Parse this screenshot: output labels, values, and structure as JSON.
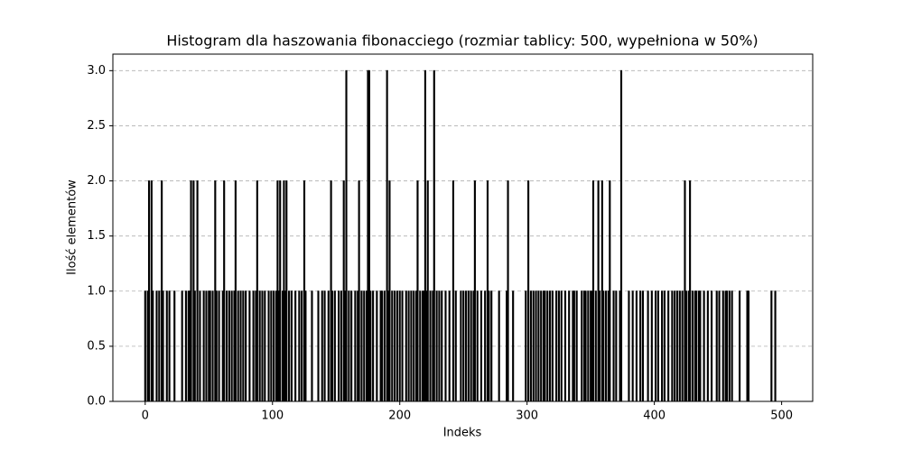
{
  "chart_data": {
    "type": "bar",
    "title": "Histogram dla haszowania fibonacciego (rozmiar tablicy: 500, wypełniona w 50%)",
    "x_label": "Indeks",
    "y_label": "Ilość elementów",
    "color": "#000000",
    "edgecolor": "#000000",
    "grid": true,
    "xlim": [
      -25.4,
      524.4
    ],
    "ylim": [
      0,
      3.15
    ],
    "xticks": [
      0,
      100,
      200,
      300,
      400,
      500
    ],
    "yticks": [
      {
        "value": 0,
        "label": "0.0"
      },
      {
        "value": 0.5,
        "label": "0.5"
      },
      {
        "value": 1,
        "label": "1.0"
      },
      {
        "value": 1.5,
        "label": "1.5"
      },
      {
        "value": 2,
        "label": "2.0"
      },
      {
        "value": 2.5,
        "label": "2.5"
      },
      {
        "value": 3,
        "label": "3.0"
      }
    ],
    "x": [
      0,
      1,
      2,
      3,
      4,
      5,
      6,
      7,
      8,
      9,
      10,
      11,
      12,
      13,
      14,
      15,
      16,
      17,
      18,
      19,
      20,
      21,
      22,
      23,
      24,
      25,
      26,
      27,
      28,
      29,
      30,
      31,
      32,
      33,
      34,
      35,
      36,
      37,
      38,
      39,
      40,
      41,
      42,
      43,
      44,
      45,
      46,
      47,
      48,
      49,
      50,
      51,
      52,
      53,
      54,
      55,
      56,
      57,
      58,
      59,
      60,
      61,
      62,
      63,
      64,
      65,
      66,
      67,
      68,
      69,
      70,
      71,
      72,
      73,
      74,
      75,
      76,
      77,
      78,
      79,
      80,
      81,
      82,
      83,
      84,
      85,
      86,
      87,
      88,
      89,
      90,
      91,
      92,
      93,
      94,
      95,
      96,
      97,
      98,
      99,
      100,
      101,
      102,
      103,
      104,
      105,
      106,
      107,
      108,
      109,
      110,
      111,
      112,
      113,
      114,
      115,
      116,
      117,
      118,
      119,
      120,
      121,
      122,
      123,
      124,
      125,
      126,
      127,
      128,
      129,
      130,
      131,
      132,
      133,
      134,
      135,
      136,
      137,
      138,
      139,
      140,
      141,
      142,
      143,
      144,
      145,
      146,
      147,
      148,
      149,
      150,
      151,
      152,
      153,
      154,
      155,
      156,
      157,
      158,
      159,
      160,
      161,
      162,
      163,
      164,
      165,
      166,
      167,
      168,
      169,
      170,
      171,
      172,
      173,
      174,
      175,
      176,
      177,
      178,
      179,
      180,
      181,
      182,
      183,
      184,
      185,
      186,
      187,
      188,
      189,
      190,
      191,
      192,
      193,
      194,
      195,
      196,
      197,
      198,
      199,
      200,
      201,
      202,
      203,
      204,
      205,
      206,
      207,
      208,
      209,
      210,
      211,
      212,
      213,
      214,
      215,
      216,
      217,
      218,
      219,
      220,
      221,
      222,
      223,
      224,
      225,
      226,
      227,
      228,
      229,
      230,
      231,
      232,
      233,
      234,
      235,
      236,
      237,
      238,
      239,
      240,
      241,
      242,
      243,
      244,
      245,
      246,
      247,
      248,
      249,
      250,
      251,
      252,
      253,
      254,
      255,
      256,
      257,
      258,
      259,
      260,
      261,
      262,
      263,
      264,
      265,
      266,
      267,
      268,
      269,
      270,
      271,
      272,
      273,
      274,
      275,
      276,
      277,
      278,
      279,
      280,
      281,
      282,
      283,
      284,
      285,
      286,
      287,
      288,
      289,
      290,
      291,
      292,
      293,
      294,
      295,
      296,
      297,
      298,
      299,
      300,
      301,
      302,
      303,
      304,
      305,
      306,
      307,
      308,
      309,
      310,
      311,
      312,
      313,
      314,
      315,
      316,
      317,
      318,
      319,
      320,
      321,
      322,
      323,
      324,
      325,
      326,
      327,
      328,
      329,
      330,
      331,
      332,
      333,
      334,
      335,
      336,
      337,
      338,
      339,
      340,
      341,
      342,
      343,
      344,
      345,
      346,
      347,
      348,
      349,
      350,
      351,
      352,
      353,
      354,
      355,
      356,
      357,
      358,
      359,
      360,
      361,
      362,
      363,
      364,
      365,
      366,
      367,
      368,
      369,
      370,
      371,
      372,
      373,
      374,
      375,
      376,
      377,
      378,
      379,
      380,
      381,
      382,
      383,
      384,
      385,
      386,
      387,
      388,
      389,
      390,
      391,
      392,
      393,
      394,
      395,
      396,
      397,
      398,
      399,
      400,
      401,
      402,
      403,
      404,
      405,
      406,
      407,
      408,
      409,
      410,
      411,
      412,
      413,
      414,
      415,
      416,
      417,
      418,
      419,
      420,
      421,
      422,
      423,
      424,
      425,
      426,
      427,
      428,
      429,
      430,
      431,
      432,
      433,
      434,
      435,
      436,
      437,
      438,
      439,
      440,
      441,
      442,
      443,
      444,
      445,
      446,
      447,
      448,
      449,
      450,
      451,
      452,
      453,
      454,
      455,
      456,
      457,
      458,
      459,
      460,
      461,
      462,
      463,
      464,
      465,
      466,
      467,
      468,
      469,
      470,
      471,
      472,
      473,
      474,
      475,
      476,
      477,
      478,
      479,
      480,
      481,
      482,
      483,
      484,
      485,
      486,
      487,
      488,
      489,
      490,
      491,
      492,
      493,
      494,
      495,
      496,
      497,
      498,
      499
    ],
    "values": [
      1,
      0,
      1,
      2,
      0,
      2,
      1,
      0,
      0,
      1,
      0,
      1,
      0,
      2,
      1,
      0,
      0,
      1,
      0,
      1,
      0,
      0,
      0,
      1,
      0,
      0,
      0,
      0,
      0,
      1,
      0,
      0,
      1,
      0,
      1,
      1,
      2,
      0,
      2,
      1,
      0,
      2,
      0,
      1,
      0,
      0,
      1,
      0,
      1,
      0,
      1,
      1,
      0,
      1,
      0,
      2,
      1,
      0,
      1,
      0,
      0,
      1,
      2,
      0,
      1,
      0,
      1,
      0,
      1,
      0,
      1,
      2,
      0,
      1,
      0,
      1,
      0,
      1,
      0,
      1,
      0,
      0,
      1,
      0,
      0,
      1,
      0,
      1,
      2,
      0,
      1,
      0,
      1,
      0,
      1,
      0,
      0,
      1,
      0,
      1,
      0,
      1,
      0,
      1,
      2,
      1,
      2,
      0,
      1,
      2,
      1,
      2,
      0,
      1,
      0,
      1,
      0,
      0,
      1,
      0,
      0,
      1,
      0,
      1,
      0,
      2,
      1,
      0,
      0,
      0,
      0,
      1,
      0,
      0,
      0,
      0,
      1,
      0,
      0,
      1,
      0,
      1,
      0,
      0,
      1,
      0,
      2,
      1,
      0,
      1,
      0,
      0,
      1,
      0,
      1,
      0,
      2,
      1,
      3,
      0,
      1,
      0,
      1,
      0,
      0,
      1,
      0,
      1,
      2,
      0,
      1,
      0,
      1,
      0,
      1,
      3,
      3,
      1,
      0,
      1,
      0,
      0,
      1,
      0,
      0,
      1,
      1,
      0,
      1,
      0,
      3,
      1,
      2,
      0,
      1,
      0,
      1,
      0,
      1,
      0,
      1,
      0,
      1,
      0,
      0,
      1,
      0,
      1,
      0,
      1,
      0,
      1,
      0,
      1,
      2,
      0,
      1,
      0,
      1,
      1,
      3,
      1,
      2,
      0,
      1,
      0,
      1,
      3,
      0,
      1,
      0,
      1,
      0,
      1,
      0,
      0,
      1,
      0,
      0,
      1,
      0,
      0,
      2,
      0,
      1,
      0,
      0,
      0,
      1,
      0,
      1,
      0,
      1,
      0,
      1,
      0,
      1,
      0,
      1,
      2,
      0,
      1,
      0,
      0,
      1,
      0,
      0,
      1,
      0,
      2,
      1,
      0,
      1,
      0,
      0,
      0,
      0,
      0,
      1,
      0,
      0,
      0,
      0,
      0,
      1,
      2,
      0,
      0,
      0,
      1,
      0,
      0,
      0,
      0,
      0,
      0,
      0,
      0,
      0,
      1,
      0,
      2,
      0,
      1,
      0,
      1,
      0,
      1,
      0,
      1,
      0,
      1,
      0,
      1,
      1,
      0,
      1,
      0,
      1,
      0,
      1,
      0,
      0,
      1,
      0,
      1,
      0,
      1,
      0,
      0,
      1,
      0,
      0,
      1,
      0,
      0,
      1,
      1,
      0,
      1,
      0,
      0,
      0,
      1,
      0,
      1,
      1,
      0,
      1,
      0,
      1,
      1,
      2,
      0,
      1,
      0,
      2,
      1,
      0,
      2,
      1,
      0,
      1,
      0,
      1,
      2,
      0,
      0,
      1,
      0,
      1,
      0,
      0,
      1,
      3,
      0,
      0,
      0,
      0,
      0,
      1,
      0,
      0,
      1,
      0,
      0,
      1,
      0,
      0,
      1,
      0,
      1,
      0,
      0,
      0,
      1,
      0,
      0,
      1,
      0,
      0,
      1,
      0,
      1,
      0,
      0,
      1,
      0,
      1,
      0,
      0,
      1,
      0,
      0,
      1,
      0,
      1,
      0,
      1,
      0,
      1,
      0,
      1,
      0,
      2,
      1,
      0,
      1,
      2,
      0,
      1,
      0,
      1,
      1,
      0,
      1,
      1,
      0,
      0,
      1,
      0,
      0,
      1,
      0,
      0,
      1,
      0,
      0,
      0,
      1,
      0,
      1,
      0,
      0,
      1,
      0,
      1,
      1,
      0,
      1,
      0,
      1,
      0,
      0,
      0,
      0,
      0,
      1,
      0,
      0,
      0,
      0,
      0,
      1,
      1,
      0,
      0,
      0,
      0,
      0,
      0,
      0,
      0,
      0,
      0,
      0,
      0,
      0,
      0,
      0,
      0,
      0,
      1,
      0,
      0,
      1,
      0,
      0,
      0,
      0
    ]
  }
}
